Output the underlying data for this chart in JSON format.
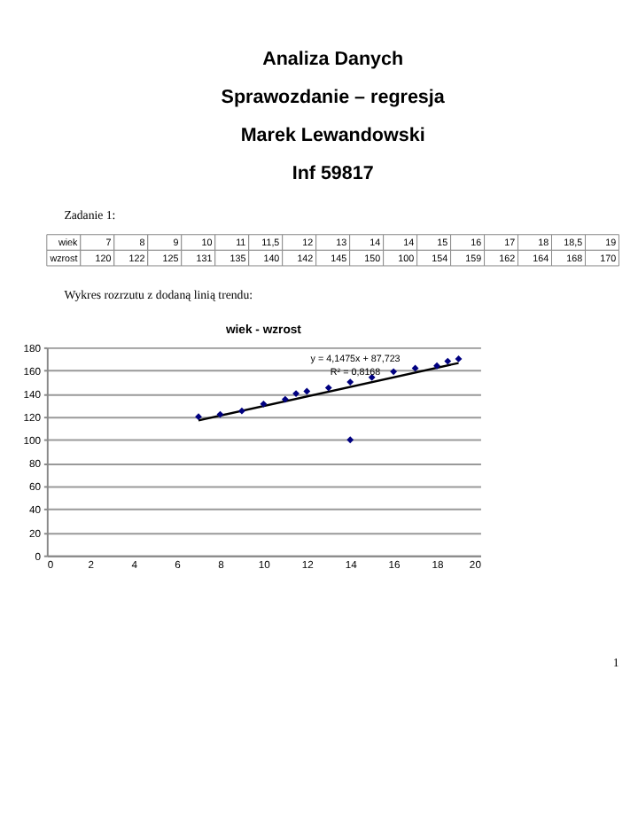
{
  "chart_data": {
    "type": "scatter",
    "title": "wiek - wzrost",
    "annotations": [
      "Analiza Danych",
      "Sprawozdanie – regresja",
      "Marek Lewandowski",
      "Inf 59817",
      "Zadanie 1:",
      "wiek",
      "7",
      "8",
      "9",
      "10",
      "11",
      "11,5",
      "12",
      "13",
      "14",
      "14",
      "15",
      "16",
      "17",
      "18",
      "18,5",
      "19",
      "wzrost",
      "120",
      "122",
      "125",
      "131",
      "135",
      "140",
      "142",
      "145",
      "150",
      "100",
      "154",
      "159",
      "162",
      "164",
      "168",
      "170",
      "Wykres rozrzutu z dodaną linią trendu:",
      "y = 4,1475x + 87,723",
      "R² = 0,8168",
      "1"
    ],
    "x": [
      7,
      8,
      9,
      10,
      11,
      11.5,
      12,
      13,
      14,
      14,
      15,
      16,
      17,
      18,
      18.5,
      19
    ],
    "series": [
      {
        "color": "#000080",
        "marker": "diamond",
        "values": [
          120,
          122,
          125,
          131,
          135,
          140,
          142,
          145,
          150,
          100,
          154,
          159,
          162,
          164,
          168,
          170
        ]
      },
      {
        "type": "line",
        "color": "#000000",
        "marker": "none",
        "line_style": "solid",
        "x": [
          7,
          19
        ],
        "values": [
          116.8,
          166.5
        ]
      }
    ],
    "xlim": [
      0,
      20
    ],
    "xticks": [
      0,
      2,
      4,
      6,
      8,
      10,
      12,
      14,
      16,
      18,
      20
    ],
    "ylim": [
      0,
      180
    ],
    "yticks": [
      0,
      20,
      40,
      60,
      80,
      100,
      120,
      140,
      160,
      180
    ],
    "grid": "y"
  }
}
